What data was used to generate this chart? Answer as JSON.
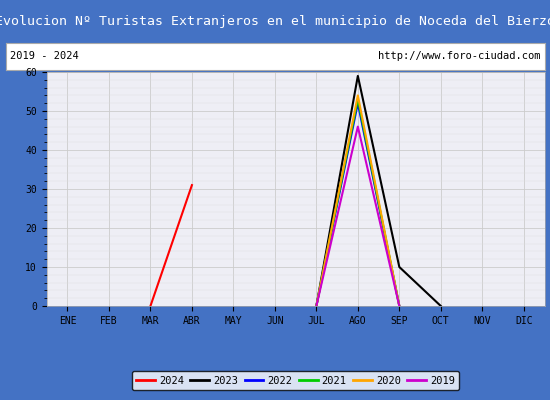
{
  "title": "Evolucion Nº Turistas Extranjeros en el municipio de Noceda del Bierzo",
  "subtitle_left": "2019 - 2024",
  "subtitle_right": "http://www.foro-ciudad.com",
  "title_bg_color": "#4472c4",
  "title_text_color": "#ffffff",
  "subtitle_bg_color": "#ffffff",
  "plot_bg_color": "#eeeef5",
  "outer_bg_color": "#4472c4",
  "months": [
    "ENE",
    "FEB",
    "MAR",
    "ABR",
    "MAY",
    "JUN",
    "JUL",
    "AGO",
    "SEP",
    "OCT",
    "NOV",
    "DIC"
  ],
  "ylim": [
    0,
    60
  ],
  "yticks": [
    0,
    10,
    20,
    30,
    40,
    50,
    60
  ],
  "series": {
    "2024": {
      "color": "#ff0000",
      "data": [
        null,
        null,
        0,
        31,
        null,
        null,
        null,
        null,
        null,
        null,
        null,
        null
      ]
    },
    "2023": {
      "color": "#000000",
      "data": [
        null,
        null,
        null,
        null,
        null,
        null,
        0,
        59,
        10,
        0,
        null,
        null
      ]
    },
    "2022": {
      "color": "#0000ff",
      "data": [
        null,
        null,
        null,
        null,
        null,
        null,
        0,
        52,
        0,
        null,
        null,
        null
      ]
    },
    "2021": {
      "color": "#00cc00",
      "data": [
        null,
        null,
        null,
        null,
        null,
        null,
        0,
        53,
        0,
        null,
        null,
        null
      ]
    },
    "2020": {
      "color": "#ffa500",
      "data": [
        null,
        null,
        null,
        null,
        null,
        null,
        0,
        54,
        0,
        null,
        null,
        null
      ]
    },
    "2019": {
      "color": "#cc00cc",
      "data": [
        null,
        null,
        null,
        null,
        null,
        null,
        0,
        46,
        0,
        null,
        null,
        null
      ]
    }
  },
  "legend_order": [
    "2024",
    "2023",
    "2022",
    "2021",
    "2020",
    "2019"
  ],
  "grid_color": "#cccccc",
  "grid_minor_color": "#dddddd"
}
